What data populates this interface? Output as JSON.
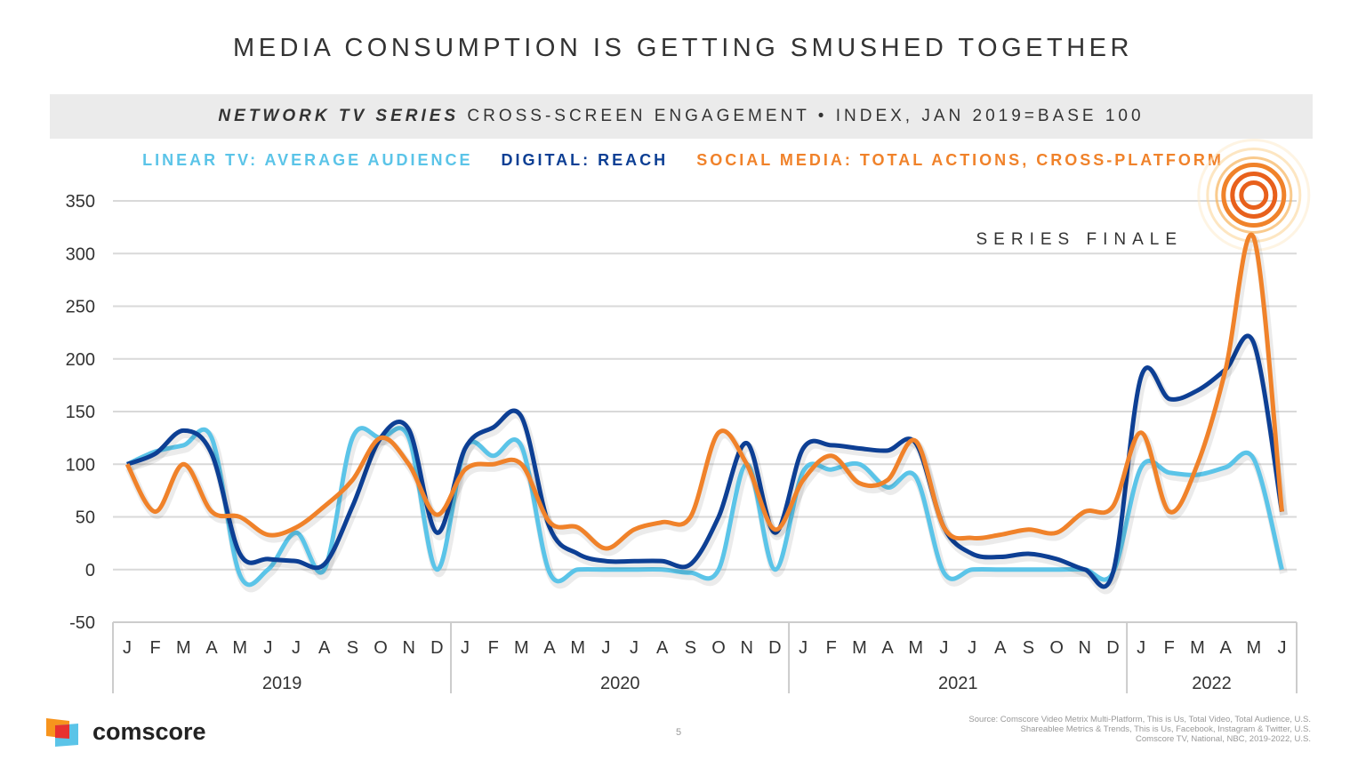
{
  "title": "MEDIA CONSUMPTION IS GETTING SMUSHED TOGETHER",
  "subtitle_bold": "NETWORK TV SERIES",
  "subtitle_rest": "CROSS-SCREEN ENGAGEMENT • INDEX, JAN 2019=BASE 100",
  "chart_data": {
    "type": "line",
    "ylim": [
      -50,
      350
    ],
    "yticks": [
      350,
      300,
      250,
      200,
      150,
      100,
      50,
      0,
      -50
    ],
    "grid": true,
    "legend_placement": "top",
    "month_labels": [
      "J",
      "F",
      "M",
      "A",
      "M",
      "J",
      "J",
      "A",
      "S",
      "O",
      "N",
      "D"
    ],
    "years": [
      "2019",
      "2020",
      "2021",
      "2022"
    ],
    "x": [
      "2019-01",
      "2019-02",
      "2019-03",
      "2019-04",
      "2019-05",
      "2019-06",
      "2019-07",
      "2019-08",
      "2019-09",
      "2019-10",
      "2019-11",
      "2019-12",
      "2020-01",
      "2020-02",
      "2020-03",
      "2020-04",
      "2020-05",
      "2020-06",
      "2020-07",
      "2020-08",
      "2020-09",
      "2020-10",
      "2020-11",
      "2020-12",
      "2021-01",
      "2021-02",
      "2021-03",
      "2021-04",
      "2021-05",
      "2021-06",
      "2021-07",
      "2021-08",
      "2021-09",
      "2021-10",
      "2021-11",
      "2021-12",
      "2022-01",
      "2022-02",
      "2022-03",
      "2022-04",
      "2022-05",
      "2022-06"
    ],
    "series": [
      {
        "name": "LINEAR TV: AVERAGE AUDIENCE",
        "color": "#5bc4e8",
        "values": [
          100,
          112,
          118,
          125,
          -5,
          0,
          35,
          0,
          125,
          125,
          125,
          0,
          115,
          108,
          117,
          -3,
          0,
          0,
          0,
          0,
          -3,
          0,
          100,
          0,
          93,
          95,
          100,
          78,
          88,
          -3,
          0,
          0,
          0,
          0,
          0,
          -3,
          97,
          92,
          90,
          97,
          105,
          0
        ]
      },
      {
        "name": "DIGITAL: REACH",
        "color": "#0d3f94",
        "values": [
          100,
          110,
          132,
          110,
          15,
          10,
          8,
          5,
          60,
          125,
          133,
          35,
          115,
          135,
          145,
          40,
          15,
          8,
          8,
          8,
          5,
          50,
          120,
          35,
          115,
          118,
          115,
          113,
          120,
          40,
          15,
          12,
          15,
          10,
          0,
          -3,
          183,
          162,
          170,
          190,
          215,
          55
        ]
      },
      {
        "name": "SOCIAL MEDIA: TOTAL ACTIONS, CROSS-PLATFORM",
        "color": "#f0822a",
        "values": [
          100,
          55,
          100,
          55,
          50,
          33,
          40,
          60,
          85,
          125,
          100,
          52,
          95,
          100,
          100,
          45,
          40,
          20,
          38,
          45,
          50,
          130,
          100,
          38,
          85,
          108,
          82,
          85,
          122,
          40,
          30,
          33,
          38,
          35,
          55,
          60,
          130,
          55,
          100,
          190,
          315,
          55
        ]
      }
    ],
    "annotation": "SERIES FINALE"
  },
  "footer": {
    "logo": "comscore",
    "page_number": "5",
    "source_lines": [
      "Source: Comscore Video Metrix Multi-Platform, This is Us, Total Video, Total Audience, U.S.",
      "Shareablee Metrics & Trends, This is Us, Facebook, Instagram & Twitter, U.S.",
      "Comscore TV, National, NBC, 2019-2022, U.S."
    ]
  }
}
